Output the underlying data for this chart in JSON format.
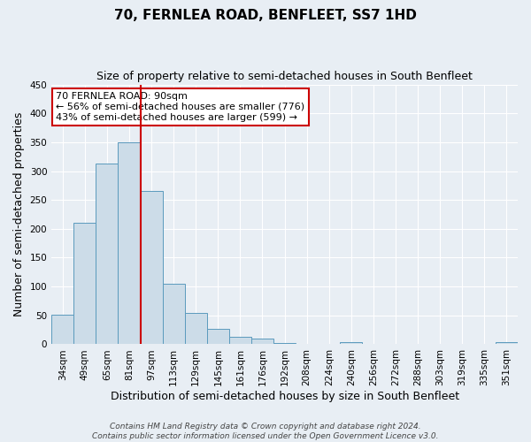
{
  "title": "70, FERNLEA ROAD, BENFLEET, SS7 1HD",
  "subtitle": "Size of property relative to semi-detached houses in South Benfleet",
  "xlabel": "Distribution of semi-detached houses by size in South Benfleet",
  "ylabel": "Number of semi-detached properties",
  "bin_labels": [
    "34sqm",
    "49sqm",
    "65sqm",
    "81sqm",
    "97sqm",
    "113sqm",
    "129sqm",
    "145sqm",
    "161sqm",
    "176sqm",
    "192sqm",
    "208sqm",
    "224sqm",
    "240sqm",
    "256sqm",
    "272sqm",
    "288sqm",
    "303sqm",
    "319sqm",
    "335sqm",
    "351sqm"
  ],
  "bar_values": [
    51,
    211,
    313,
    350,
    265,
    105,
    55,
    27,
    13,
    10,
    2,
    0,
    0,
    3,
    0,
    0,
    0,
    0,
    0,
    0,
    3
  ],
  "bar_color": "#ccdce8",
  "bar_edge_color": "#5b9abd",
  "ylim": [
    0,
    450
  ],
  "yticks": [
    0,
    50,
    100,
    150,
    200,
    250,
    300,
    350,
    400,
    450
  ],
  "vline_pos": 3.5,
  "annotation_text_line1": "70 FERNLEA ROAD: 90sqm",
  "annotation_text_line2": "← 56% of semi-detached houses are smaller (776)",
  "annotation_text_line3": "43% of semi-detached houses are larger (599) →",
  "annotation_box_facecolor": "#ffffff",
  "annotation_box_edgecolor": "#cc0000",
  "vline_color": "#cc0000",
  "footer_line1": "Contains HM Land Registry data © Crown copyright and database right 2024.",
  "footer_line2": "Contains public sector information licensed under the Open Government Licence v3.0.",
  "bg_color": "#e8eef4",
  "plot_bg_color": "#e8eef4",
  "grid_color": "#ffffff",
  "title_fontsize": 11,
  "subtitle_fontsize": 9,
  "axis_label_fontsize": 9,
  "tick_fontsize": 7.5,
  "annotation_fontsize": 8,
  "footer_fontsize": 6.5
}
